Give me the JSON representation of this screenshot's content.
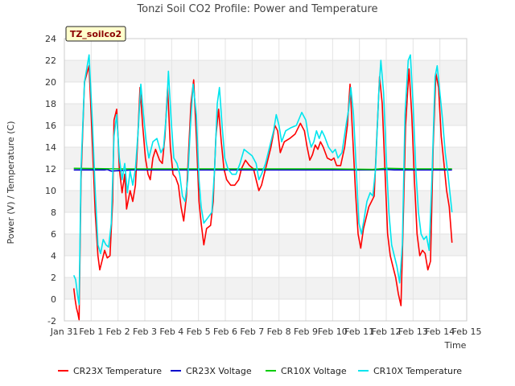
{
  "chart_data": {
    "type": "line",
    "title": "Tonzi Soil CO2 Profile: Power and Temperature",
    "badge": "TZ_soilco2",
    "xlabel": "Time",
    "ylabel": "Power (V) / Temperature (C)",
    "xlim": [
      0,
      15
    ],
    "ylim": [
      -2,
      24
    ],
    "y_ticks": [
      -2,
      0,
      2,
      4,
      6,
      8,
      10,
      12,
      14,
      16,
      18,
      20,
      22,
      24
    ],
    "x_ticks": [
      {
        "value": 0,
        "label": "Jan 31"
      },
      {
        "value": 1,
        "label": "Feb 1"
      },
      {
        "value": 2,
        "label": "Feb 2"
      },
      {
        "value": 3,
        "label": "Feb 3"
      },
      {
        "value": 4,
        "label": "Feb 4"
      },
      {
        "value": 5,
        "label": "Feb 5"
      },
      {
        "value": 6,
        "label": "Feb 6"
      },
      {
        "value": 7,
        "label": "Feb 7"
      },
      {
        "value": 8,
        "label": "Feb 8"
      },
      {
        "value": 9,
        "label": "Feb 9"
      },
      {
        "value": 10,
        "label": "Feb 10"
      },
      {
        "value": 11,
        "label": "Feb 11"
      },
      {
        "value": 12,
        "label": "Feb 12"
      },
      {
        "value": 13,
        "label": "Feb 13"
      },
      {
        "value": 14,
        "label": "Feb 14"
      },
      {
        "value": 15,
        "label": "Feb 15"
      }
    ],
    "grid": true,
    "legend_position": "bottom",
    "series": [
      {
        "name": "CR23X Temperature",
        "color": "#ff0000",
        "points": [
          [
            0.35,
            1
          ],
          [
            0.4,
            0
          ],
          [
            0.45,
            -0.8
          ],
          [
            0.5,
            -1.3
          ],
          [
            0.55,
            -1.9
          ],
          [
            0.62,
            11
          ],
          [
            0.75,
            20
          ],
          [
            0.92,
            21.5
          ],
          [
            1.05,
            14
          ],
          [
            1.15,
            8
          ],
          [
            1.25,
            4
          ],
          [
            1.32,
            2.7
          ],
          [
            1.4,
            3.5
          ],
          [
            1.5,
            4.5
          ],
          [
            1.6,
            3.8
          ],
          [
            1.7,
            4
          ],
          [
            1.8,
            9
          ],
          [
            1.85,
            16.5
          ],
          [
            1.95,
            17.5
          ],
          [
            2.0,
            15
          ],
          [
            2.05,
            12
          ],
          [
            2.15,
            9.8
          ],
          [
            2.25,
            11.5
          ],
          [
            2.32,
            8.3
          ],
          [
            2.45,
            10
          ],
          [
            2.55,
            9
          ],
          [
            2.65,
            10.5
          ],
          [
            2.72,
            14
          ],
          [
            2.82,
            19.5
          ],
          [
            2.92,
            16
          ],
          [
            3.02,
            13
          ],
          [
            3.12,
            11.5
          ],
          [
            3.2,
            11
          ],
          [
            3.3,
            13
          ],
          [
            3.4,
            13.8
          ],
          [
            3.55,
            12.8
          ],
          [
            3.65,
            12.5
          ],
          [
            3.75,
            15
          ],
          [
            3.85,
            19.5
          ],
          [
            3.95,
            14
          ],
          [
            4.05,
            11.5
          ],
          [
            4.15,
            11.2
          ],
          [
            4.25,
            10.5
          ],
          [
            4.35,
            8.5
          ],
          [
            4.45,
            7.2
          ],
          [
            4.55,
            9.5
          ],
          [
            4.62,
            13
          ],
          [
            4.72,
            18
          ],
          [
            4.82,
            20.2
          ],
          [
            4.92,
            15
          ],
          [
            5.02,
            9
          ],
          [
            5.1,
            7
          ],
          [
            5.2,
            5
          ],
          [
            5.3,
            6.5
          ],
          [
            5.45,
            6.8
          ],
          [
            5.55,
            9
          ],
          [
            5.65,
            15
          ],
          [
            5.75,
            17.5
          ],
          [
            5.85,
            14.5
          ],
          [
            5.95,
            12
          ],
          [
            6.05,
            11
          ],
          [
            6.2,
            10.5
          ],
          [
            6.35,
            10.5
          ],
          [
            6.5,
            11
          ],
          [
            6.6,
            12
          ],
          [
            6.75,
            12.8
          ],
          [
            6.9,
            12.3
          ],
          [
            7.05,
            12
          ],
          [
            7.15,
            11
          ],
          [
            7.25,
            10
          ],
          [
            7.35,
            10.5
          ],
          [
            7.45,
            11.5
          ],
          [
            7.55,
            12.5
          ],
          [
            7.7,
            14
          ],
          [
            7.85,
            16
          ],
          [
            7.95,
            15.5
          ],
          [
            8.05,
            13.5
          ],
          [
            8.2,
            14.5
          ],
          [
            8.4,
            14.8
          ],
          [
            8.6,
            15.2
          ],
          [
            8.8,
            16.2
          ],
          [
            8.95,
            15.5
          ],
          [
            9.05,
            14
          ],
          [
            9.15,
            12.8
          ],
          [
            9.25,
            13.3
          ],
          [
            9.35,
            14.2
          ],
          [
            9.45,
            13.8
          ],
          [
            9.55,
            14.5
          ],
          [
            9.65,
            14
          ],
          [
            9.8,
            13
          ],
          [
            9.95,
            12.8
          ],
          [
            10.05,
            13
          ],
          [
            10.15,
            12.3
          ],
          [
            10.3,
            12.3
          ],
          [
            10.45,
            14
          ],
          [
            10.55,
            16
          ],
          [
            10.65,
            19.8
          ],
          [
            10.75,
            15
          ],
          [
            10.85,
            10
          ],
          [
            10.95,
            6
          ],
          [
            11.05,
            4.7
          ],
          [
            11.15,
            6.5
          ],
          [
            11.25,
            7.5
          ],
          [
            11.35,
            8.5
          ],
          [
            11.45,
            9
          ],
          [
            11.55,
            9.5
          ],
          [
            11.65,
            15
          ],
          [
            11.75,
            20.5
          ],
          [
            11.85,
            18
          ],
          [
            11.95,
            12
          ],
          [
            12.05,
            6
          ],
          [
            12.15,
            4
          ],
          [
            12.25,
            3
          ],
          [
            12.35,
            2
          ],
          [
            12.45,
            0.5
          ],
          [
            12.55,
            -0.6
          ],
          [
            12.62,
            6
          ],
          [
            12.72,
            16
          ],
          [
            12.85,
            21.2
          ],
          [
            12.95,
            17
          ],
          [
            13.05,
            11
          ],
          [
            13.15,
            6
          ],
          [
            13.25,
            4
          ],
          [
            13.35,
            4.5
          ],
          [
            13.45,
            4.2
          ],
          [
            13.55,
            2.7
          ],
          [
            13.65,
            3.5
          ],
          [
            13.75,
            14
          ],
          [
            13.85,
            20.8
          ],
          [
            13.95,
            19.5
          ],
          [
            14.05,
            15
          ],
          [
            14.15,
            12.5
          ],
          [
            14.25,
            10
          ],
          [
            14.35,
            8.5
          ],
          [
            14.45,
            5.2
          ]
        ]
      },
      {
        "name": "CR23X Voltage",
        "color": "#0000cc",
        "points": [
          [
            0.35,
            11.9
          ],
          [
            1.5,
            11.9
          ],
          [
            1.6,
            11.95
          ],
          [
            1.75,
            11.8
          ],
          [
            2.5,
            11.9
          ],
          [
            5.0,
            11.9
          ],
          [
            8.0,
            11.9
          ],
          [
            10.5,
            11.9
          ],
          [
            11.5,
            11.9
          ],
          [
            12.0,
            11.95
          ],
          [
            12.3,
            11.9
          ],
          [
            13.0,
            11.9
          ],
          [
            14.0,
            11.9
          ],
          [
            14.45,
            11.9
          ]
        ]
      },
      {
        "name": "CR10X Voltage",
        "color": "#00cc00",
        "points": [
          [
            0.35,
            12.05
          ],
          [
            2.0,
            12.0
          ],
          [
            4.0,
            12.0
          ],
          [
            6.0,
            12.0
          ],
          [
            8.0,
            12.0
          ],
          [
            10.0,
            12.0
          ],
          [
            11.5,
            11.95
          ],
          [
            12.0,
            12.05
          ],
          [
            13.0,
            12.0
          ],
          [
            14.45,
            12.0
          ]
        ]
      },
      {
        "name": "CR10X Temperature",
        "color": "#00e5ee",
        "points": [
          [
            0.35,
            2.2
          ],
          [
            0.42,
            1.8
          ],
          [
            0.5,
            0.2
          ],
          [
            0.55,
            -0.5
          ],
          [
            0.62,
            12
          ],
          [
            0.75,
            20
          ],
          [
            0.92,
            22.5
          ],
          [
            1.05,
            16
          ],
          [
            1.15,
            10
          ],
          [
            1.25,
            5
          ],
          [
            1.35,
            4.2
          ],
          [
            1.45,
            5.5
          ],
          [
            1.55,
            5
          ],
          [
            1.65,
            4.8
          ],
          [
            1.75,
            7
          ],
          [
            1.85,
            15
          ],
          [
            1.95,
            17
          ],
          [
            2.05,
            13
          ],
          [
            2.15,
            11
          ],
          [
            2.25,
            12.5
          ],
          [
            2.35,
            9.8
          ],
          [
            2.45,
            11.8
          ],
          [
            2.55,
            10.5
          ],
          [
            2.65,
            12
          ],
          [
            2.75,
            15.5
          ],
          [
            2.85,
            19.8
          ],
          [
            2.95,
            17
          ],
          [
            3.05,
            14.5
          ],
          [
            3.15,
            13
          ],
          [
            3.3,
            14.5
          ],
          [
            3.45,
            14.8
          ],
          [
            3.6,
            13.5
          ],
          [
            3.7,
            14
          ],
          [
            3.8,
            17
          ],
          [
            3.88,
            21
          ],
          [
            3.98,
            16.5
          ],
          [
            4.08,
            13
          ],
          [
            4.2,
            12.5
          ],
          [
            4.3,
            11.5
          ],
          [
            4.4,
            9.5
          ],
          [
            4.5,
            9
          ],
          [
            4.6,
            11
          ],
          [
            4.7,
            16
          ],
          [
            4.8,
            19.8
          ],
          [
            4.92,
            17
          ],
          [
            5.02,
            11
          ],
          [
            5.1,
            8.5
          ],
          [
            5.2,
            7
          ],
          [
            5.35,
            7.5
          ],
          [
            5.5,
            8
          ],
          [
            5.6,
            12
          ],
          [
            5.7,
            18
          ],
          [
            5.78,
            19.5
          ],
          [
            5.88,
            16
          ],
          [
            5.98,
            13
          ],
          [
            6.1,
            12
          ],
          [
            6.25,
            11.5
          ],
          [
            6.4,
            11.5
          ],
          [
            6.55,
            12.5
          ],
          [
            6.7,
            13.8
          ],
          [
            6.85,
            13.5
          ],
          [
            7.0,
            13.2
          ],
          [
            7.15,
            12.5
          ],
          [
            7.25,
            11
          ],
          [
            7.35,
            11.5
          ],
          [
            7.5,
            12.5
          ],
          [
            7.65,
            14
          ],
          [
            7.8,
            15.5
          ],
          [
            7.9,
            17
          ],
          [
            8.0,
            16
          ],
          [
            8.1,
            14.5
          ],
          [
            8.25,
            15.5
          ],
          [
            8.45,
            15.8
          ],
          [
            8.65,
            16
          ],
          [
            8.85,
            17.2
          ],
          [
            9.0,
            16.5
          ],
          [
            9.1,
            15
          ],
          [
            9.2,
            14
          ],
          [
            9.3,
            14.5
          ],
          [
            9.4,
            15.5
          ],
          [
            9.5,
            14.8
          ],
          [
            9.6,
            15.5
          ],
          [
            9.7,
            15
          ],
          [
            9.85,
            14
          ],
          [
            10.0,
            13.5
          ],
          [
            10.1,
            13.8
          ],
          [
            10.2,
            13
          ],
          [
            10.35,
            13.5
          ],
          [
            10.5,
            16
          ],
          [
            10.6,
            17.5
          ],
          [
            10.68,
            19.5
          ],
          [
            10.78,
            17
          ],
          [
            10.88,
            12
          ],
          [
            10.98,
            7
          ],
          [
            11.08,
            6
          ],
          [
            11.18,
            7.5
          ],
          [
            11.28,
            9
          ],
          [
            11.4,
            9.8
          ],
          [
            11.5,
            9.5
          ],
          [
            11.6,
            12
          ],
          [
            11.72,
            19
          ],
          [
            11.8,
            22
          ],
          [
            11.9,
            19
          ],
          [
            12.0,
            13
          ],
          [
            12.1,
            8
          ],
          [
            12.2,
            5
          ],
          [
            12.3,
            4
          ],
          [
            12.4,
            3
          ],
          [
            12.5,
            1.5
          ],
          [
            12.6,
            5
          ],
          [
            12.7,
            17
          ],
          [
            12.82,
            22
          ],
          [
            12.9,
            22.5
          ],
          [
            13.0,
            18
          ],
          [
            13.1,
            12
          ],
          [
            13.2,
            8
          ],
          [
            13.3,
            6
          ],
          [
            13.4,
            5.5
          ],
          [
            13.5,
            5.8
          ],
          [
            13.6,
            4.5
          ],
          [
            13.7,
            11
          ],
          [
            13.82,
            20.5
          ],
          [
            13.9,
            21.5
          ],
          [
            14.0,
            19
          ],
          [
            14.1,
            16.5
          ],
          [
            14.2,
            13.5
          ],
          [
            14.3,
            11.5
          ],
          [
            14.45,
            8
          ]
        ]
      }
    ]
  }
}
